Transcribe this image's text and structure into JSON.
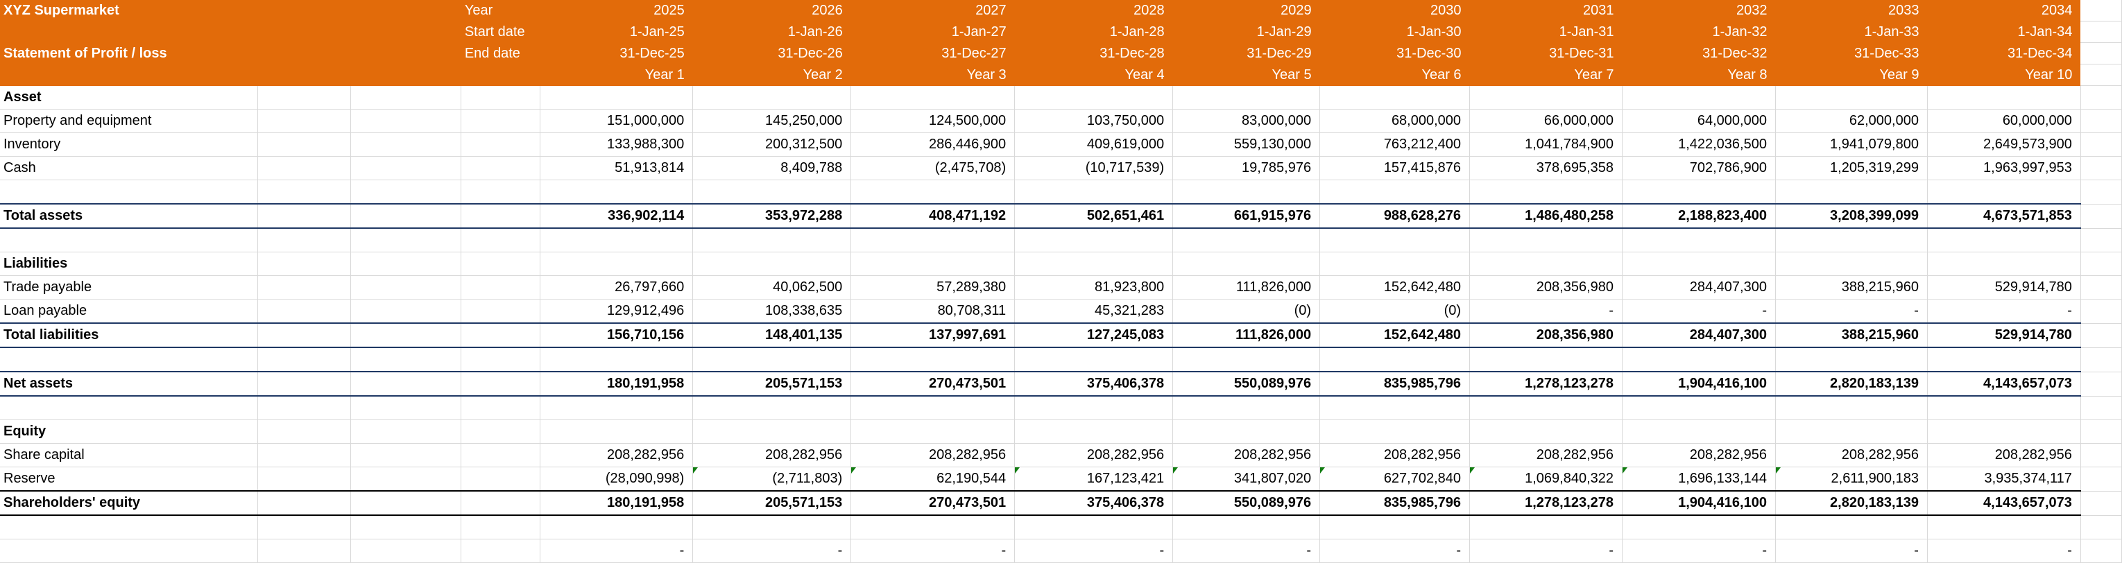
{
  "header": {
    "company": "XYZ  Supermarket",
    "statement": "Statement of Profit / loss",
    "year_label": "Year",
    "start_label": "Start date",
    "end_label": "End date",
    "columns": [
      {
        "year": "2025",
        "start": "1-Jan-25",
        "end": "31-Dec-25",
        "period": "Year 1"
      },
      {
        "year": "2026",
        "start": "1-Jan-26",
        "end": "31-Dec-26",
        "period": "Year 2"
      },
      {
        "year": "2027",
        "start": "1-Jan-27",
        "end": "31-Dec-27",
        "period": "Year 3"
      },
      {
        "year": "2028",
        "start": "1-Jan-28",
        "end": "31-Dec-28",
        "period": "Year 4"
      },
      {
        "year": "2029",
        "start": "1-Jan-29",
        "end": "31-Dec-29",
        "period": "Year 5"
      },
      {
        "year": "2030",
        "start": "1-Jan-30",
        "end": "31-Dec-30",
        "period": "Year 6"
      },
      {
        "year": "2031",
        "start": "1-Jan-31",
        "end": "31-Dec-31",
        "period": "Year 7"
      },
      {
        "year": "2032",
        "start": "1-Jan-32",
        "end": "31-Dec-32",
        "period": "Year 8"
      },
      {
        "year": "2033",
        "start": "1-Jan-33",
        "end": "31-Dec-33",
        "period": "Year 9"
      },
      {
        "year": "2034",
        "start": "1-Jan-34",
        "end": "31-Dec-34",
        "period": "Year 10"
      }
    ]
  },
  "colors": {
    "header_bg": "#E26B0A",
    "total_border": "#1F3864",
    "error_flag": "#107C10"
  },
  "rows": [
    {
      "label": "Asset",
      "style": "section",
      "values": []
    },
    {
      "label": "Property and equipment",
      "style": "normal",
      "values": [
        "151,000,000",
        "145,250,000",
        "124,500,000",
        "103,750,000",
        "83,000,000",
        "68,000,000",
        "66,000,000",
        "64,000,000",
        "62,000,000",
        "60,000,000"
      ]
    },
    {
      "label": "Inventory",
      "style": "normal",
      "values": [
        "133,988,300",
        "200,312,500",
        "286,446,900",
        "409,619,000",
        "559,130,000",
        "763,212,400",
        "1,041,784,900",
        "1,422,036,500",
        "1,941,079,800",
        "2,649,573,900"
      ]
    },
    {
      "label": "Cash",
      "style": "normal",
      "values": [
        "51,913,814",
        "8,409,788",
        "(2,475,708)",
        "(10,717,539)",
        "19,785,976",
        "157,415,876",
        "378,695,358",
        "702,786,900",
        "1,205,319,299",
        "1,963,997,953"
      ]
    },
    {
      "label": "",
      "style": "blank",
      "values": []
    },
    {
      "label": "Total assets",
      "style": "total",
      "values": [
        "336,902,114",
        "353,972,288",
        "408,471,192",
        "502,651,461",
        "661,915,976",
        "988,628,276",
        "1,486,480,258",
        "2,188,823,400",
        "3,208,399,099",
        "4,673,571,853"
      ]
    },
    {
      "label": "",
      "style": "blank",
      "values": []
    },
    {
      "label": "Liabilities",
      "style": "section",
      "values": []
    },
    {
      "label": "Trade payable",
      "style": "normal",
      "values": [
        "26,797,660",
        "40,062,500",
        "57,289,380",
        "81,923,800",
        "111,826,000",
        "152,642,480",
        "208,356,980",
        "284,407,300",
        "388,215,960",
        "529,914,780"
      ]
    },
    {
      "label": "Loan payable",
      "style": "normal",
      "values": [
        "129,912,496",
        "108,338,635",
        "80,708,311",
        "45,321,283",
        "(0)",
        "(0)",
        "-",
        "-",
        "-",
        "-"
      ]
    },
    {
      "label": "Total liabilities",
      "style": "total",
      "values": [
        "156,710,156",
        "148,401,135",
        "137,997,691",
        "127,245,083",
        "111,826,000",
        "152,642,480",
        "208,356,980",
        "284,407,300",
        "388,215,960",
        "529,914,780"
      ]
    },
    {
      "label": "",
      "style": "blank",
      "values": []
    },
    {
      "label": "Net assets",
      "style": "total",
      "values": [
        "180,191,958",
        "205,571,153",
        "270,473,501",
        "375,406,378",
        "550,089,976",
        "835,985,796",
        "1,278,123,278",
        "1,904,416,100",
        "2,820,183,139",
        "4,143,657,073"
      ]
    },
    {
      "label": "",
      "style": "blank",
      "values": []
    },
    {
      "label": "Equity",
      "style": "section",
      "values": []
    },
    {
      "label": "Share capital",
      "style": "normal",
      "values": [
        "208,282,956",
        "208,282,956",
        "208,282,956",
        "208,282,956",
        "208,282,956",
        "208,282,956",
        "208,282,956",
        "208,282,956",
        "208,282,956",
        "208,282,956"
      ]
    },
    {
      "label": "Reserve",
      "style": "flagged",
      "values": [
        "(28,090,998)",
        "(2,711,803)",
        "62,190,544",
        "167,123,421",
        "341,807,020",
        "627,702,840",
        "1,069,840,322",
        "1,696,133,144",
        "2,611,900,183",
        "3,935,374,117"
      ]
    },
    {
      "label": "Shareholders' equity",
      "style": "grand",
      "values": [
        "180,191,958",
        "205,571,153",
        "270,473,501",
        "375,406,378",
        "550,089,976",
        "835,985,796",
        "1,278,123,278",
        "1,904,416,100",
        "2,820,183,139",
        "4,143,657,073"
      ]
    },
    {
      "label": "",
      "style": "blank",
      "values": []
    },
    {
      "label": "",
      "style": "check",
      "values": [
        "-",
        "-",
        "-",
        "-",
        "-",
        "-",
        "-",
        "-",
        "-",
        "-"
      ]
    }
  ]
}
